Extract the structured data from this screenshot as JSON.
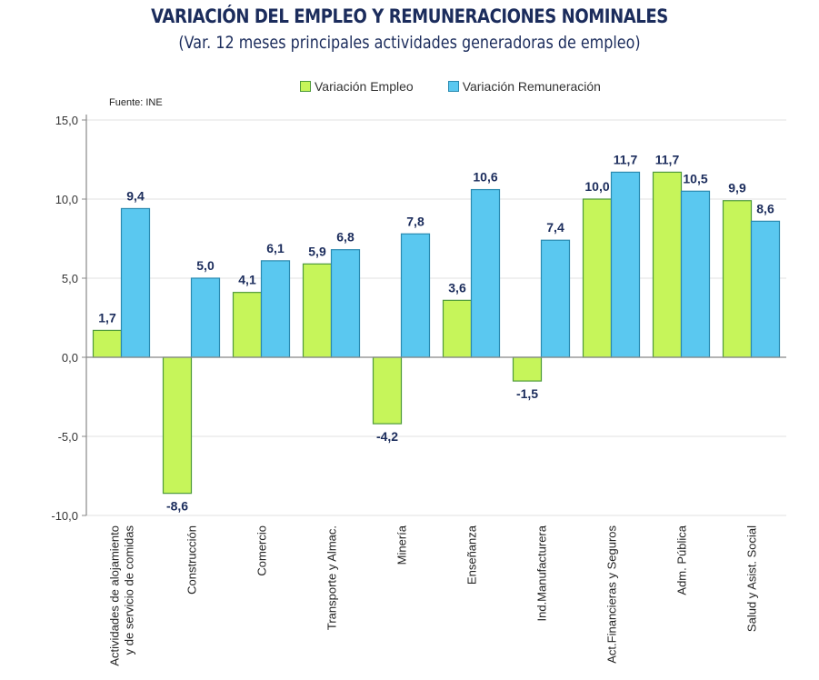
{
  "chart_data": {
    "type": "bar",
    "title": "VARIACIÓN DEL EMPLEO Y REMUNERACIONES NOMINALES",
    "subtitle": "(Var. 12 meses principales actividades generadoras de empleo)",
    "source": "Fuente: INE",
    "xlabel": "",
    "ylabel": "",
    "ylim": [
      -10,
      15
    ],
    "yticks": [
      15,
      10,
      5,
      0,
      -5,
      -10
    ],
    "ytick_labels": [
      "15,0",
      "10,0",
      "5,0",
      "0,0",
      "-5,0",
      "-10,0"
    ],
    "grid": true,
    "legend_position": "top-center",
    "categories": [
      [
        "Actividades de alojamiento",
        "y de servicio de comidas"
      ],
      [
        "Construcción"
      ],
      [
        "Comercio"
      ],
      [
        "Transporte y Almac."
      ],
      [
        "Minería"
      ],
      [
        "Enseñanza"
      ],
      [
        "Ind.Manufacturera"
      ],
      [
        "Act.Financieras y Seguros"
      ],
      [
        "Adm. Pública"
      ],
      [
        "Salud y Asist. Social"
      ]
    ],
    "series": [
      {
        "name": "Variación Empleo",
        "color": "#c6f55a",
        "border": "#4e9a3a",
        "values": [
          1.7,
          -8.6,
          4.1,
          5.9,
          -4.2,
          3.6,
          -1.5,
          10.0,
          11.7,
          9.9
        ],
        "labels": [
          "1,7",
          "-8,6",
          "4,1",
          "5,9",
          "-4,2",
          "3,6",
          "-1,5",
          "10,0",
          "11,7",
          "9,9"
        ]
      },
      {
        "name": "Variación Remuneración",
        "color": "#5ac8f0",
        "border": "#2a8ab0",
        "values": [
          9.4,
          5.0,
          6.1,
          6.8,
          7.8,
          10.6,
          7.4,
          11.7,
          10.5,
          8.6
        ],
        "labels": [
          "9,4",
          "5,0",
          "6,1",
          "6,8",
          "7,8",
          "10,6",
          "7,4",
          "11,7",
          "10,5",
          "8,6"
        ]
      }
    ]
  }
}
